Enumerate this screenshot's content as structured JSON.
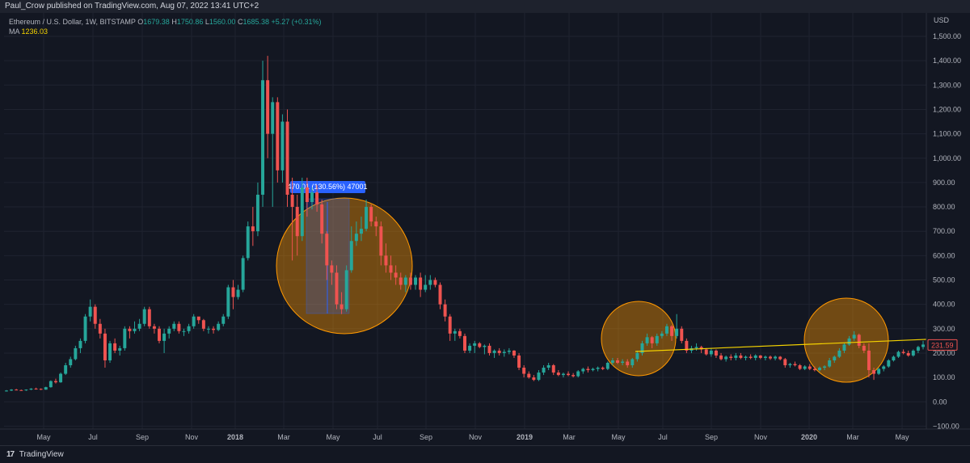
{
  "header": {
    "publisher": "Paul_Crow published on TradingView.com, Aug 07, 2022 13:41 UTC+2"
  },
  "legend": {
    "symbol": "Ethereum / U.S. Dollar, 1W, BITSTAMP",
    "open_label": "O",
    "open": "1679.38",
    "high_label": "H",
    "high": "1750.86",
    "low_label": "L",
    "low": "1560.00",
    "close_label": "C",
    "close": "1685.38",
    "change": "+5.27 (+0.31%)",
    "ma_label": "MA",
    "ma_value": "1236.03"
  },
  "footer": {
    "logo_glyph": "17",
    "brand": "TradingView"
  },
  "colors": {
    "background": "#131722",
    "up": "#26a69a",
    "down": "#ef5350",
    "circle": "#ff9800",
    "trendline": "#f5d300",
    "measure": "#2962ff"
  },
  "chart_data": {
    "type": "candlestick",
    "title": "",
    "currency_label": "USD",
    "ylim": [
      -110,
      1560
    ],
    "y_ticks": [
      "1,500.00",
      "1,400.00",
      "1,300.00",
      "1,200.00",
      "1,100.00",
      "1,000.00",
      "900.00",
      "800.00",
      "700.00",
      "600.00",
      "500.00",
      "400.00",
      "300.00",
      "200.00",
      "100.00",
      "0.00",
      "−100.00"
    ],
    "x_ticks": [
      "May",
      "Jul",
      "Sep",
      "Nov",
      "2018",
      "Mar",
      "May",
      "Jul",
      "Sep",
      "Nov",
      "2019",
      "Mar",
      "May",
      "Jul",
      "Sep",
      "Nov",
      "2020",
      "Mar",
      "May"
    ],
    "x_ticks_bold": [
      "2018",
      "2019",
      "2020"
    ],
    "price_label": "231.59",
    "measure_label": "470.01 (130.56%) 47001",
    "grid": true,
    "candles": [
      [
        45,
        48,
        42,
        46
      ],
      [
        46,
        52,
        44,
        50
      ],
      [
        50,
        53,
        47,
        48
      ],
      [
        48,
        50,
        46,
        47
      ],
      [
        47,
        51,
        45,
        50
      ],
      [
        50,
        56,
        48,
        54
      ],
      [
        54,
        58,
        50,
        53
      ],
      [
        53,
        55,
        48,
        50
      ],
      [
        50,
        62,
        49,
        60
      ],
      [
        60,
        88,
        58,
        85
      ],
      [
        85,
        95,
        75,
        80
      ],
      [
        80,
        120,
        78,
        115
      ],
      [
        115,
        160,
        110,
        150
      ],
      [
        150,
        185,
        140,
        175
      ],
      [
        175,
        230,
        170,
        220
      ],
      [
        220,
        260,
        200,
        250
      ],
      [
        250,
        360,
        240,
        350
      ],
      [
        350,
        420,
        330,
        390
      ],
      [
        390,
        400,
        300,
        320
      ],
      [
        320,
        340,
        260,
        280
      ],
      [
        280,
        300,
        140,
        170
      ],
      [
        170,
        250,
        160,
        240
      ],
      [
        240,
        260,
        200,
        210
      ],
      [
        210,
        230,
        190,
        220
      ],
      [
        220,
        310,
        210,
        300
      ],
      [
        300,
        310,
        260,
        290
      ],
      [
        290,
        330,
        280,
        300
      ],
      [
        300,
        340,
        290,
        320
      ],
      [
        320,
        390,
        310,
        380
      ],
      [
        380,
        390,
        300,
        310
      ],
      [
        310,
        320,
        280,
        300
      ],
      [
        300,
        310,
        240,
        250
      ],
      [
        250,
        300,
        200,
        280
      ],
      [
        280,
        310,
        260,
        300
      ],
      [
        300,
        330,
        290,
        320
      ],
      [
        320,
        330,
        280,
        290
      ],
      [
        290,
        300,
        270,
        290
      ],
      [
        290,
        320,
        280,
        310
      ],
      [
        310,
        360,
        300,
        350
      ],
      [
        350,
        340,
        320,
        335
      ],
      [
        335,
        340,
        290,
        300
      ],
      [
        300,
        310,
        280,
        300
      ],
      [
        300,
        310,
        280,
        295
      ],
      [
        295,
        330,
        290,
        320
      ],
      [
        320,
        360,
        310,
        350
      ],
      [
        350,
        480,
        340,
        470
      ],
      [
        470,
        500,
        380,
        430
      ],
      [
        430,
        480,
        420,
        460
      ],
      [
        460,
        600,
        450,
        590
      ],
      [
        590,
        740,
        580,
        720
      ],
      [
        720,
        800,
        640,
        700
      ],
      [
        700,
        900,
        680,
        850
      ],
      [
        850,
        1400,
        800,
        1320
      ],
      [
        1320,
        1420,
        1000,
        1100
      ],
      [
        1100,
        1250,
        800,
        1230
      ],
      [
        1230,
        1250,
        900,
        950
      ],
      [
        950,
        1180,
        900,
        1150
      ],
      [
        1150,
        1200,
        800,
        850
      ],
      [
        850,
        920,
        580,
        800
      ],
      [
        800,
        850,
        600,
        680
      ],
      [
        680,
        920,
        660,
        880
      ],
      [
        880,
        920,
        760,
        820
      ],
      [
        820,
        880,
        790,
        860
      ],
      [
        860,
        890,
        780,
        810
      ],
      [
        810,
        830,
        650,
        690
      ],
      [
        690,
        700,
        500,
        560
      ],
      [
        560,
        580,
        480,
        530
      ],
      [
        530,
        560,
        380,
        400
      ],
      [
        400,
        450,
        360,
        380
      ],
      [
        380,
        560,
        370,
        540
      ],
      [
        540,
        720,
        530,
        660
      ],
      [
        660,
        740,
        640,
        690
      ],
      [
        690,
        760,
        660,
        710
      ],
      [
        710,
        830,
        700,
        800
      ],
      [
        800,
        810,
        720,
        740
      ],
      [
        740,
        760,
        680,
        720
      ],
      [
        720,
        740,
        560,
        600
      ],
      [
        600,
        650,
        530,
        560
      ],
      [
        560,
        600,
        500,
        530
      ],
      [
        530,
        560,
        480,
        510
      ],
      [
        510,
        530,
        460,
        480
      ],
      [
        480,
        520,
        450,
        510
      ],
      [
        510,
        530,
        460,
        480
      ],
      [
        480,
        520,
        460,
        510
      ],
      [
        510,
        530,
        430,
        460
      ],
      [
        460,
        520,
        450,
        480
      ],
      [
        480,
        520,
        460,
        500
      ],
      [
        500,
        510,
        470,
        480
      ],
      [
        480,
        490,
        380,
        400
      ],
      [
        400,
        420,
        330,
        350
      ],
      [
        350,
        360,
        250,
        280
      ],
      [
        280,
        300,
        250,
        290
      ],
      [
        290,
        300,
        260,
        270
      ],
      [
        270,
        280,
        200,
        210
      ],
      [
        210,
        240,
        200,
        230
      ],
      [
        230,
        250,
        200,
        240
      ],
      [
        240,
        245,
        220,
        225
      ],
      [
        225,
        235,
        195,
        230
      ],
      [
        230,
        240,
        190,
        200
      ],
      [
        200,
        215,
        180,
        210
      ],
      [
        210,
        220,
        190,
        200
      ],
      [
        200,
        215,
        185,
        205
      ],
      [
        205,
        220,
        195,
        210
      ],
      [
        210,
        212,
        180,
        190
      ],
      [
        190,
        200,
        130,
        140
      ],
      [
        140,
        150,
        100,
        115
      ],
      [
        115,
        125,
        95,
        100
      ],
      [
        100,
        110,
        85,
        90
      ],
      [
        90,
        130,
        85,
        120
      ],
      [
        120,
        150,
        110,
        140
      ],
      [
        140,
        160,
        130,
        150
      ],
      [
        150,
        155,
        110,
        120
      ],
      [
        120,
        130,
        105,
        110
      ],
      [
        110,
        120,
        100,
        115
      ],
      [
        115,
        125,
        105,
        110
      ],
      [
        110,
        118,
        100,
        105
      ],
      [
        105,
        130,
        100,
        125
      ],
      [
        125,
        140,
        115,
        135
      ],
      [
        135,
        145,
        120,
        130
      ],
      [
        130,
        140,
        125,
        135
      ],
      [
        135,
        145,
        125,
        140
      ],
      [
        140,
        145,
        130,
        135
      ],
      [
        135,
        165,
        130,
        160
      ],
      [
        160,
        180,
        150,
        170
      ],
      [
        170,
        180,
        155,
        160
      ],
      [
        160,
        175,
        150,
        165
      ],
      [
        165,
        175,
        140,
        150
      ],
      [
        150,
        180,
        140,
        175
      ],
      [
        175,
        210,
        165,
        200
      ],
      [
        200,
        250,
        190,
        240
      ],
      [
        240,
        280,
        230,
        265
      ],
      [
        265,
        270,
        220,
        240
      ],
      [
        240,
        280,
        230,
        270
      ],
      [
        270,
        290,
        260,
        280
      ],
      [
        280,
        320,
        270,
        310
      ],
      [
        310,
        315,
        250,
        270
      ],
      [
        270,
        360,
        260,
        300
      ],
      [
        300,
        310,
        240,
        250
      ],
      [
        250,
        260,
        200,
        210
      ],
      [
        210,
        230,
        200,
        220
      ],
      [
        220,
        240,
        210,
        225
      ],
      [
        225,
        230,
        200,
        215
      ],
      [
        215,
        220,
        190,
        195
      ],
      [
        195,
        220,
        185,
        210
      ],
      [
        210,
        215,
        180,
        190
      ],
      [
        190,
        200,
        170,
        175
      ],
      [
        175,
        190,
        165,
        185
      ],
      [
        185,
        195,
        170,
        180
      ],
      [
        180,
        200,
        170,
        190
      ],
      [
        190,
        200,
        175,
        180
      ],
      [
        180,
        190,
        170,
        185
      ],
      [
        185,
        195,
        175,
        180
      ],
      [
        180,
        195,
        170,
        190
      ],
      [
        190,
        192,
        175,
        180
      ],
      [
        180,
        190,
        170,
        185
      ],
      [
        185,
        190,
        172,
        178
      ],
      [
        178,
        190,
        170,
        185
      ],
      [
        185,
        188,
        170,
        175
      ],
      [
        175,
        180,
        140,
        150
      ],
      [
        150,
        160,
        140,
        155
      ],
      [
        155,
        165,
        145,
        150
      ],
      [
        150,
        155,
        130,
        135
      ],
      [
        135,
        150,
        130,
        145
      ],
      [
        145,
        155,
        130,
        135
      ],
      [
        135,
        145,
        125,
        130
      ],
      [
        130,
        145,
        125,
        140
      ],
      [
        140,
        150,
        130,
        145
      ],
      [
        145,
        180,
        140,
        170
      ],
      [
        170,
        190,
        160,
        185
      ],
      [
        185,
        220,
        180,
        210
      ],
      [
        210,
        240,
        200,
        235
      ],
      [
        235,
        270,
        230,
        260
      ],
      [
        260,
        290,
        250,
        275
      ],
      [
        275,
        280,
        220,
        230
      ],
      [
        230,
        240,
        200,
        210
      ],
      [
        210,
        240,
        100,
        130
      ],
      [
        130,
        140,
        90,
        115
      ],
      [
        115,
        140,
        110,
        135
      ],
      [
        135,
        150,
        125,
        145
      ],
      [
        145,
        175,
        140,
        170
      ],
      [
        170,
        190,
        165,
        185
      ],
      [
        185,
        210,
        180,
        205
      ],
      [
        205,
        215,
        195,
        200
      ],
      [
        200,
        210,
        185,
        190
      ],
      [
        190,
        215,
        185,
        210
      ],
      [
        210,
        230,
        200,
        225
      ],
      [
        225,
        250,
        215,
        235
      ]
    ]
  }
}
